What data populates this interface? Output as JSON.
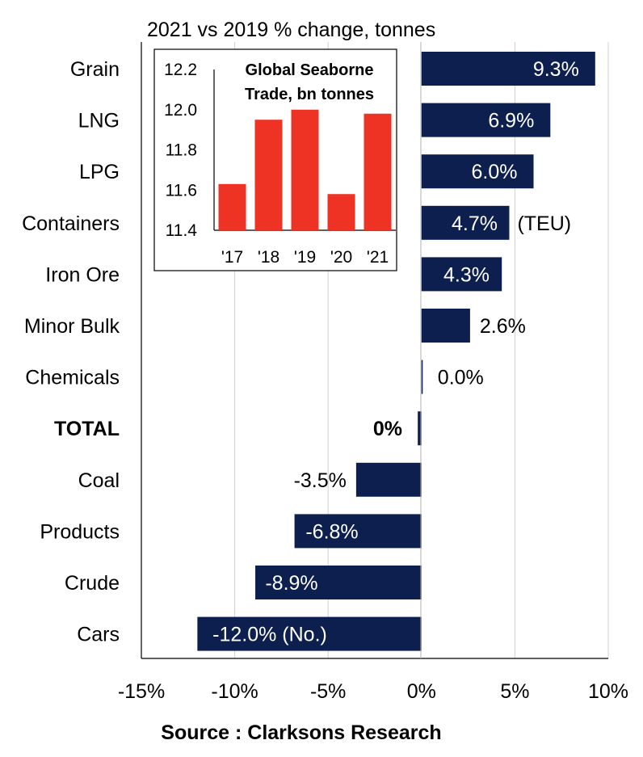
{
  "chart_data": [
    {
      "type": "bar",
      "orientation": "horizontal",
      "title": "2021 vs 2019 % change, tonnes",
      "categories": [
        "Grain",
        "LNG",
        "LPG",
        "Containers",
        "Iron Ore",
        "Minor Bulk",
        "Chemicals",
        "TOTAL",
        "Coal",
        "Products",
        "Crude",
        "Cars"
      ],
      "values": [
        9.3,
        6.9,
        6.0,
        4.7,
        4.3,
        2.6,
        0.0,
        -0.2,
        -3.5,
        -6.8,
        -8.9,
        -12.0
      ],
      "data_labels": [
        "9.3%",
        "6.9%",
        "6.0%",
        "4.7%",
        "4.3%",
        "2.6%",
        "0.0%",
        "0%",
        "-3.5%",
        "-6.8%",
        "-8.9%",
        "-12.0% (No.)"
      ],
      "annotations": [
        {
          "category": "Containers",
          "text": "(TEU)"
        }
      ],
      "bold_categories": [
        "TOTAL"
      ],
      "xlim": [
        -15,
        10
      ],
      "xticks": [
        -15,
        -10,
        -5,
        0,
        5,
        10
      ],
      "xtick_labels": [
        "-15%",
        "-10%",
        "-5%",
        "0%",
        "5%",
        "10%"
      ],
      "grid": "vertical",
      "bar_color": "#0d1f4e"
    },
    {
      "type": "bar",
      "title": "Global Seaborne Trade, bn tonnes",
      "title_lines": [
        "Global Seaborne",
        "Trade, bn tonnes"
      ],
      "categories": [
        "'17",
        "'18",
        "'19",
        "'20",
        "'21"
      ],
      "values": [
        11.63,
        11.95,
        12.0,
        11.58,
        11.98
      ],
      "ylim": [
        11.4,
        12.2
      ],
      "yticks": [
        11.4,
        11.6,
        11.8,
        12.0,
        12.2
      ],
      "ytick_labels": [
        "11.4",
        "11.6",
        "11.8",
        "12.0",
        "12.2"
      ],
      "bar_color": "#ee3324",
      "legend": "inset top-left"
    }
  ],
  "source": "Source : Clarksons Research"
}
